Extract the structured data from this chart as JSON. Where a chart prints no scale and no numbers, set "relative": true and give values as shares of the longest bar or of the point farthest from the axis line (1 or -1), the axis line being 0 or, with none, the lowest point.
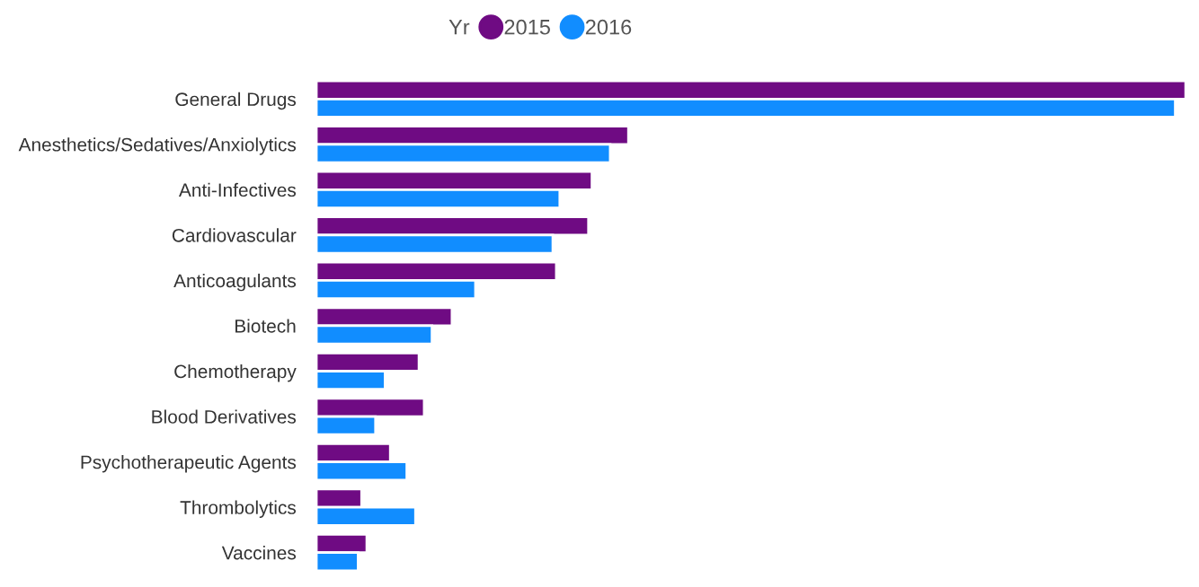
{
  "chart_data": {
    "type": "bar",
    "orientation": "horizontal",
    "relative": true,
    "legend_title": "Yr",
    "legend": "top",
    "categories": [
      "General Drugs",
      "Anesthetics/Sedatives/Anxiolytics",
      "Anti-Infectives",
      "Cardiovascular",
      "Anticoagulants",
      "Biotech",
      "Chemotherapy",
      "Blood Derivatives",
      "Psychotherapeutic Agents",
      "Thrombolytics",
      "Vaccines"
    ],
    "series": [
      {
        "name": "2015",
        "color": "#6f0b83",
        "values": [
          1.0,
          0.359,
          0.317,
          0.313,
          0.276,
          0.156,
          0.118,
          0.124,
          0.085,
          0.052,
          0.058
        ]
      },
      {
        "name": "2016",
        "color": "#118dff",
        "values": [
          0.988,
          0.338,
          0.28,
          0.272,
          0.183,
          0.133,
          0.079,
          0.068,
          0.104,
          0.114,
          0.048
        ]
      }
    ]
  }
}
